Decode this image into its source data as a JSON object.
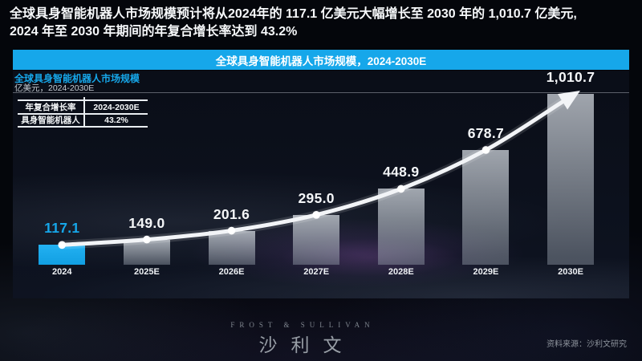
{
  "slide": {
    "headline_line1": "全球具身智能机器人市场规模预计将从2024年的 117.1 亿美元大幅增长至 2030 年的 1,010.7 亿美元,",
    "headline_line2": "2024 年至 2030 年期间的年复合增长率达到 43.2%"
  },
  "banner": {
    "title": "全球具身智能机器人市场规模，2024-2030E"
  },
  "chart_header": {
    "title": "全球具身智能机器人市场规模",
    "subtitle": "亿美元，2024-2030E"
  },
  "cagr_table": {
    "col1_header": "年复合增长率",
    "col2_header": "2024-2030E",
    "row1_col1": "具身智能机器人",
    "row1_col2": "43.2%"
  },
  "chart_data": {
    "type": "bar",
    "title": "全球具身智能机器人市场规模，2024-2030E",
    "unit": "亿美元",
    "categories": [
      "2024",
      "2025E",
      "2026E",
      "2027E",
      "2028E",
      "2029E",
      "2030E"
    ],
    "values": [
      117.1,
      149.0,
      201.6,
      295.0,
      448.9,
      678.7,
      1010.7
    ],
    "value_labels": [
      "117.1",
      "149.0",
      "201.6",
      "295.0",
      "448.9",
      "678.7",
      "1,010.7"
    ],
    "highlighted_category": "2024",
    "cagr_2024_2030E": "43.2%",
    "trend_line": "smooth white curve through bar tops with dots, ending in an up-right arrow at 2030E",
    "ylim": [
      0,
      1010.7
    ],
    "grid": "single horizontal reference line at top (1,010.7 level)",
    "legend": "none"
  },
  "footer": {
    "logo_line1": "FROST & SULLIVAN",
    "logo_line2": "沙利文",
    "source": "资料来源：沙利文研究"
  },
  "colors": {
    "accent": "#16a7ea",
    "bar_fill_gray": "#aab2bb",
    "trend_line": "#f2f4f7",
    "background": "#04060b"
  }
}
